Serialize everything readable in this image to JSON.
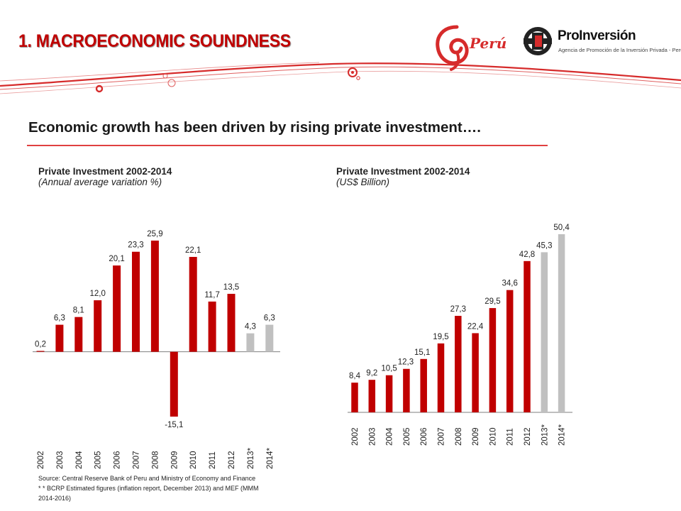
{
  "header": {
    "title": "1. MACROECONOMIC SOUNDNESS",
    "logo_peru": "Perú",
    "logo_proinversion_name": "ProInversión",
    "logo_proinversion_tagline": "Agencia de Promoción de la Inversión Privada - Perú"
  },
  "subtitle": "Economic growth has been driven by rising private investment….",
  "colors": {
    "bar_actual": "#c00000",
    "bar_estimate": "#c0c0c0",
    "accent": "#d62b2b"
  },
  "chart_data": [
    {
      "type": "bar",
      "title": "Private Investment 2002-2014",
      "subtitle": "(Annual average variation %)",
      "categories": [
        "2002",
        "2003",
        "2004",
        "2005",
        "2006",
        "2007",
        "2008",
        "2009",
        "2010",
        "2011",
        "2012",
        "2013*",
        "2014*"
      ],
      "values": [
        0.2,
        6.3,
        8.1,
        12.0,
        20.1,
        23.3,
        25.9,
        -15.1,
        22.1,
        11.7,
        13.5,
        4.3,
        6.3
      ],
      "value_labels": [
        "0,2",
        "6,3",
        "8,1",
        "12,0",
        "20,1",
        "23,3",
        "25,9",
        "-15,1",
        "22,1",
        "11,7",
        "13,5",
        "4,3",
        "6,3"
      ],
      "estimated": [
        false,
        false,
        false,
        false,
        false,
        false,
        false,
        false,
        false,
        false,
        false,
        true,
        true
      ],
      "ylim": [
        -15.1,
        25.9
      ],
      "grid": false
    },
    {
      "type": "bar",
      "title": "Private Investment 2002-2014",
      "subtitle": "(US$ Billion)",
      "categories": [
        "2002",
        "2003",
        "2004",
        "2005",
        "2006",
        "2007",
        "2008",
        "2009",
        "2010",
        "2011",
        "2012",
        "2013*",
        "2014*"
      ],
      "values": [
        8.4,
        9.2,
        10.5,
        12.3,
        15.1,
        19.5,
        27.3,
        22.4,
        29.5,
        34.6,
        42.8,
        45.3,
        50.4
      ],
      "value_labels": [
        "8,4",
        "9,2",
        "10,5",
        "12,3",
        "15,1",
        "19,5",
        "27,3",
        "22,4",
        "29,5",
        "34,6",
        "42,8",
        "45,3",
        "50,4"
      ],
      "estimated": [
        false,
        false,
        false,
        false,
        false,
        false,
        false,
        false,
        false,
        false,
        false,
        true,
        true
      ],
      "ylim": [
        0,
        50.4
      ],
      "grid": false
    }
  ],
  "source": {
    "line1": "Source: Central Reserve Bank of Peru and Ministry of Economy  and Finance",
    "line2": "* * BCRP  Estimated figures (inflation report, December 2013) and MEF  (MMM",
    "line3": "2014-2016)"
  }
}
